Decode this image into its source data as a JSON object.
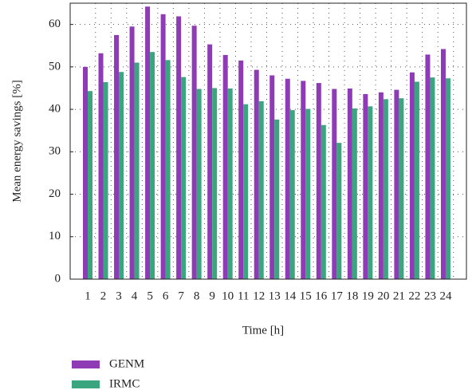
{
  "chart_data": {
    "type": "bar",
    "xlabel": "Time [h]",
    "ylabel": "Mean energy savings [%]",
    "categories": [
      "1",
      "2",
      "3",
      "4",
      "5",
      "6",
      "7",
      "8",
      "9",
      "10",
      "11",
      "12",
      "13",
      "14",
      "15",
      "16",
      "17",
      "18",
      "19",
      "20",
      "21",
      "22",
      "23",
      "24"
    ],
    "series": [
      {
        "name": "GENM",
        "color": "#8e3bb5",
        "values": [
          50,
          53.2,
          57.5,
          59.5,
          64.2,
          62.4,
          61.9,
          59.7,
          55.3,
          52.8,
          51.5,
          49.3,
          48,
          47.2,
          46.7,
          46.2,
          44.8,
          44.9,
          43.6,
          44,
          44.6,
          48.7,
          52.9,
          54.2
        ]
      },
      {
        "name": "IRMC",
        "color": "#3aa57f",
        "values": [
          44.3,
          46.4,
          48.8,
          51,
          53.5,
          51.6,
          47.6,
          44.8,
          45,
          44.9,
          41.2,
          41.9,
          37.6,
          39.8,
          40.1,
          36.3,
          32.1,
          40.2,
          40.7,
          42.4,
          42.6,
          46.5,
          47.5,
          47.3
        ]
      }
    ],
    "ylim": [
      0,
      65
    ],
    "yticks": [
      0,
      10,
      20,
      30,
      40,
      50,
      60
    ],
    "grid": true
  }
}
